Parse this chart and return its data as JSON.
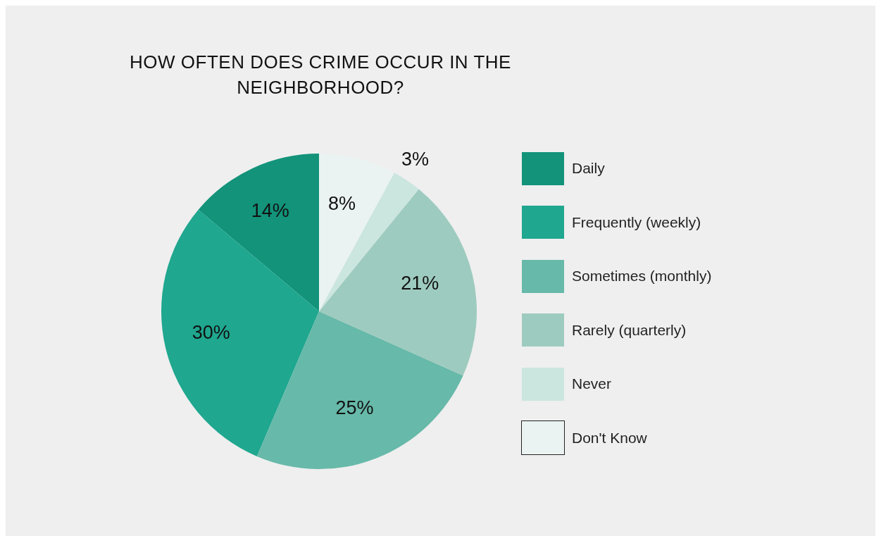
{
  "chart_data": {
    "type": "pie",
    "title": "HOW OFTEN DOES CRIME OCCUR IN THE NEIGHBORHOOD?",
    "categories": [
      "Daily",
      "Frequently (weekly)",
      "Sometimes (monthly)",
      "Rarely (quarterly)",
      "Never",
      "Don't Know"
    ],
    "values": [
      14,
      30,
      25,
      21,
      3,
      8
    ],
    "value_labels": [
      "14%",
      "30%",
      "25%",
      "21%",
      "3%",
      "8%"
    ],
    "colors": [
      "#12937a",
      "#1fa78f",
      "#67b9a9",
      "#9ecbbf",
      "#cbe5df",
      "#eaf3f1"
    ],
    "legend": "right"
  }
}
